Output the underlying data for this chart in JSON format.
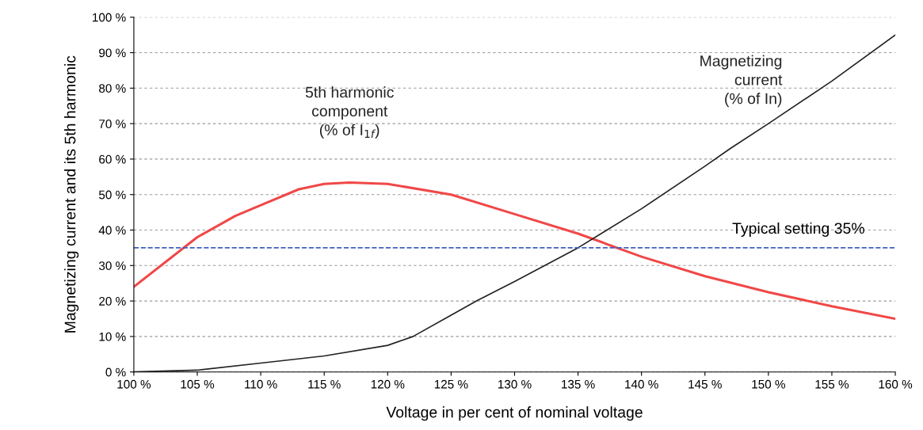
{
  "chart_data": {
    "type": "line",
    "xlabel": "Voltage in per cent of nominal voltage",
    "ylabel": "Magnetizing current and its 5th harmonic",
    "xlim": [
      100,
      160
    ],
    "ylim": [
      0,
      100
    ],
    "xticks": [
      {
        "value": 100,
        "label": "100 %"
      },
      {
        "value": 105,
        "label": "105 %"
      },
      {
        "value": 110,
        "label": "110 %"
      },
      {
        "value": 115,
        "label": "115 %"
      },
      {
        "value": 120,
        "label": "120 %"
      },
      {
        "value": 125,
        "label": "125 %"
      },
      {
        "value": 130,
        "label": "130 %"
      },
      {
        "value": 135,
        "label": "135 %"
      },
      {
        "value": 140,
        "label": "140 %"
      },
      {
        "value": 145,
        "label": "145 %"
      },
      {
        "value": 150,
        "label": "150 %"
      },
      {
        "value": 155,
        "label": "155 %"
      },
      {
        "value": 160,
        "label": "160 %"
      }
    ],
    "yticks": [
      {
        "value": 0,
        "label": "0 %"
      },
      {
        "value": 10,
        "label": "10 %"
      },
      {
        "value": 20,
        "label": "20 %"
      },
      {
        "value": 30,
        "label": "30 %"
      },
      {
        "value": 40,
        "label": "40 %"
      },
      {
        "value": 50,
        "label": "50 %"
      },
      {
        "value": 60,
        "label": "60 %"
      },
      {
        "value": 70,
        "label": "70 %"
      },
      {
        "value": 80,
        "label": "80 %"
      },
      {
        "value": 90,
        "label": "90 %"
      },
      {
        "value": 100,
        "label": "100 %"
      }
    ],
    "grid": "y",
    "marker": "none",
    "line_style": "solid",
    "series": [
      {
        "name": "5th harmonic\ncomponent\n(% of I$_{1f}$)",
        "color": "#f04848",
        "x": [
          100,
          105,
          108,
          110,
          113,
          115,
          117,
          120,
          125,
          130,
          135,
          140,
          145,
          150,
          155,
          160
        ],
        "values": [
          24,
          38,
          44,
          47,
          51.5,
          53,
          53.4,
          53,
          50,
          44.5,
          39,
          32.5,
          27,
          22.5,
          18.5,
          15
        ]
      },
      {
        "name": "Magnetizing\ncurrent\n(% of In)",
        "color": "#222222",
        "x": [
          100,
          105,
          110,
          115,
          120,
          122,
          125,
          127,
          130,
          135,
          140,
          145,
          147,
          150,
          155,
          160
        ],
        "values": [
          0,
          0.5,
          2.5,
          4.5,
          7.5,
          10,
          16,
          20,
          25.5,
          35,
          46,
          58,
          63,
          70,
          82,
          95
        ]
      }
    ],
    "ref_lines": [
      {
        "axis": "y",
        "value": 35,
        "label": "Typical setting 35%",
        "color": "#4060c0",
        "line_style": "dashed"
      }
    ]
  }
}
